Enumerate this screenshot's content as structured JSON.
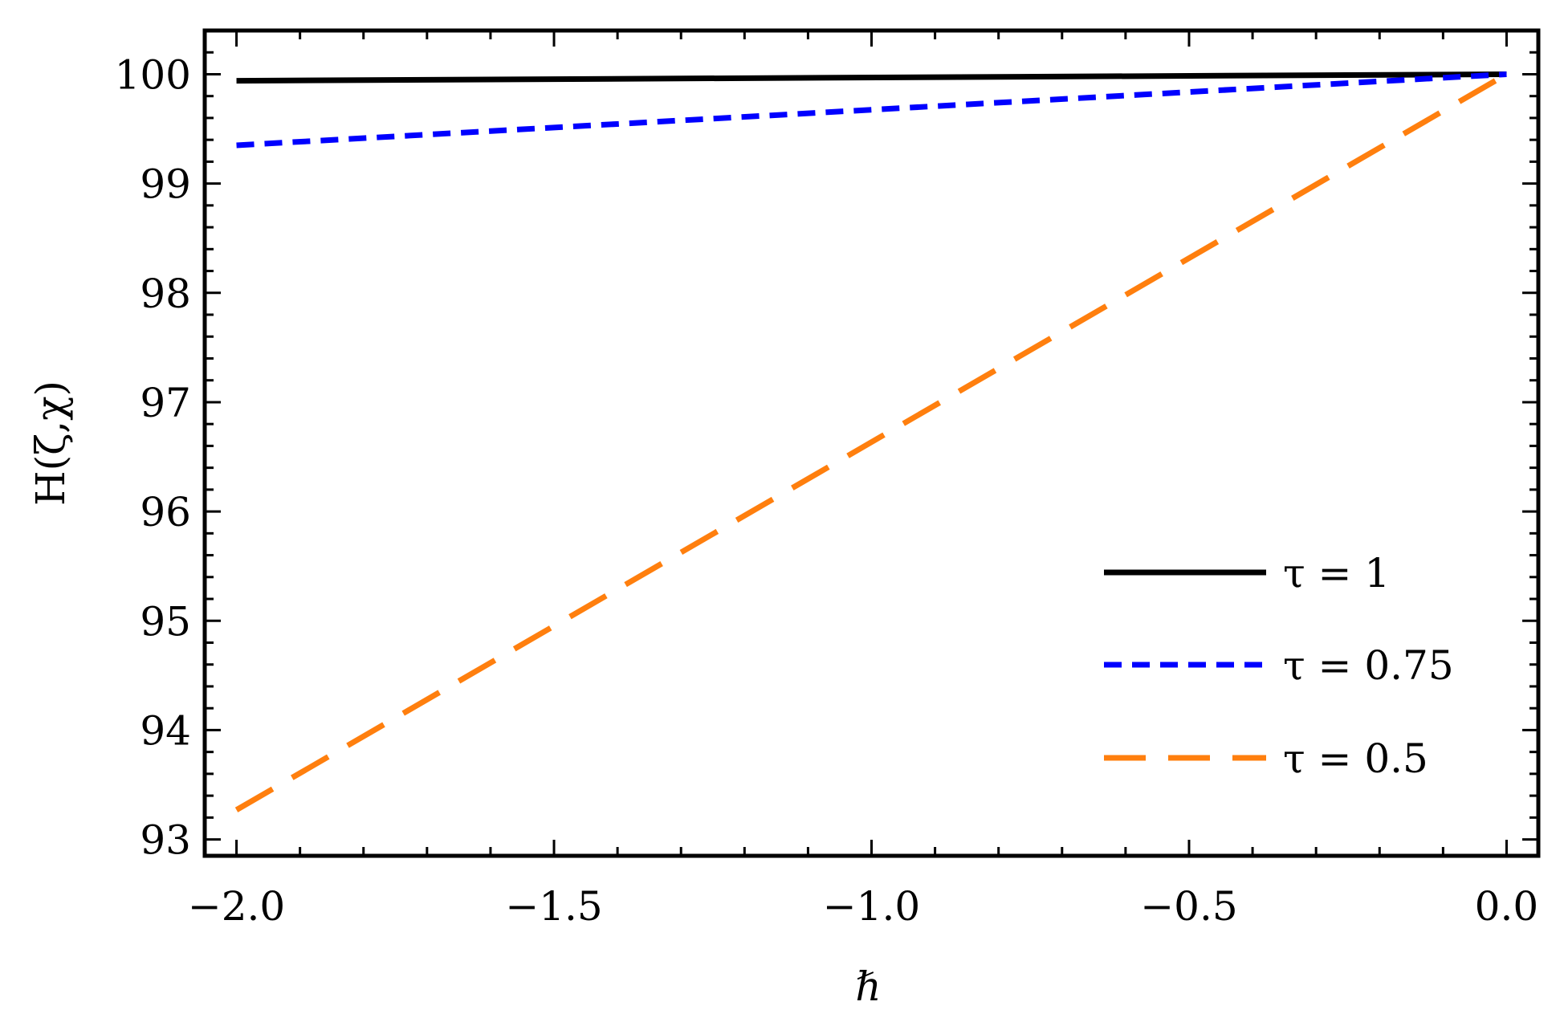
{
  "chart_data": {
    "type": "line",
    "title": "",
    "xlabel": "ℏ",
    "ylabel": "H(ζ,χ)",
    "xlim": [
      -2.05,
      0.05
    ],
    "ylim": [
      92.85,
      100.4
    ],
    "xticks": [
      -2.0,
      -1.5,
      -1.0,
      -0.5,
      0.0
    ],
    "xtick_labels": [
      "−2.0",
      "−1.5",
      "−1.0",
      "−0.5",
      "0.0"
    ],
    "yticks": [
      93,
      94,
      95,
      96,
      97,
      98,
      99,
      100
    ],
    "ytick_labels": [
      "93",
      "94",
      "95",
      "96",
      "97",
      "98",
      "99",
      "100"
    ],
    "x_minor_step": 0.1,
    "y_minor_step": 0.2,
    "grid": false,
    "legend_position": "bottom-right",
    "series": [
      {
        "name": "τ = 1",
        "color": "#000000",
        "dash": "solid",
        "x": [
          -2.0,
          0.0
        ],
        "y": [
          99.94,
          100.0
        ]
      },
      {
        "name": "τ = 0.75",
        "color": "#0000ff",
        "dash": "dotted",
        "x": [
          -2.0,
          0.0
        ],
        "y": [
          99.35,
          100.0
        ]
      },
      {
        "name": "τ = 0.5",
        "color": "#ff7f0e",
        "dash": "dashed",
        "x": [
          -2.0,
          0.0
        ],
        "y": [
          93.27,
          100.0
        ]
      }
    ]
  }
}
